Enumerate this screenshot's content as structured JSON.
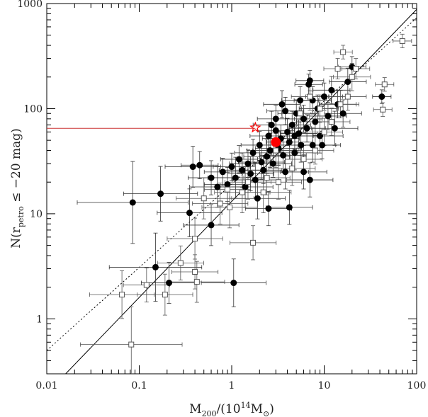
{
  "chart_data": {
    "type": "scatter",
    "title": "",
    "xlabel": "M200/(10^14 M⊙)",
    "ylabel": "N(r_petro ≤ −20 mag)",
    "x_scale": "log",
    "y_scale": "log",
    "xlim": [
      0.01,
      100
    ],
    "ylim": [
      0.3,
      1000
    ],
    "grid": false,
    "legend": "none",
    "x_ticks": [
      "0.01",
      "0.1",
      "1",
      "10",
      "100"
    ],
    "y_ticks": [
      "1",
      "10",
      "100",
      "1000"
    ],
    "xlabel_parts": {
      "pre": "M",
      "sub1": "200",
      "mid": "/(10",
      "sup": "14",
      "mid2": "M",
      "sub2": "⊙",
      "post": ")"
    },
    "ylabel_parts": {
      "pre": "N(r",
      "sub": "petro",
      "post": " ≤ −20  mag)"
    },
    "colors": {
      "filled": "#000000",
      "open": "#555555",
      "highlight": "#ff0000",
      "reference_line": "#cc3333"
    },
    "fit_lines": [
      {
        "style": "solid",
        "points": [
          [
            0.016,
            0.3
          ],
          [
            100,
            880
          ]
        ]
      },
      {
        "style": "dotted",
        "points": [
          [
            0.01,
            0.5
          ],
          [
            100,
            730
          ]
        ]
      }
    ],
    "highlight_point": {
      "x": 3.0,
      "y": 48
    },
    "star_point": {
      "x": 1.8,
      "y": 66
    },
    "reference_hline": {
      "y": 65,
      "x_start": 0.01,
      "x_end": 1.8
    },
    "series": [
      {
        "marker": "filled-circle",
        "points": [
          {
            "x": 0.085,
            "y": 12.8,
            "xe": 0.6
          },
          {
            "x": 0.17,
            "y": 15.5,
            "xe": 0.4
          },
          {
            "x": 0.15,
            "y": 3.1,
            "xe": 0.5
          },
          {
            "x": 0.21,
            "y": 2.2,
            "xe": 0.3
          },
          {
            "x": 0.38,
            "y": 28,
            "xe": 0.3
          },
          {
            "x": 0.35,
            "y": 10.2,
            "xe": 0.35
          },
          {
            "x": 0.6,
            "y": 7.8,
            "xe": 0.3
          },
          {
            "x": 1.05,
            "y": 2.2,
            "xe": 0.35
          },
          {
            "x": 2.5,
            "y": 11.2,
            "xe": 0.25
          },
          {
            "x": 4.2,
            "y": 11.5,
            "xe": 0.25
          },
          {
            "x": 0.45,
            "y": 29,
            "xe": 0.2
          },
          {
            "x": 0.6,
            "y": 22,
            "xe": 0.25
          },
          {
            "x": 0.7,
            "y": 18,
            "xe": 0.3
          },
          {
            "x": 0.8,
            "y": 25,
            "xe": 0.2
          },
          {
            "x": 0.9,
            "y": 19,
            "xe": 0.25
          },
          {
            "x": 1.0,
            "y": 28,
            "xe": 0.2
          },
          {
            "x": 1.1,
            "y": 22,
            "xe": 0.3
          },
          {
            "x": 1.2,
            "y": 33,
            "xe": 0.2
          },
          {
            "x": 1.3,
            "y": 26,
            "xe": 0.25
          },
          {
            "x": 1.4,
            "y": 18,
            "xe": 0.3
          },
          {
            "x": 1.5,
            "y": 30,
            "xe": 0.2
          },
          {
            "x": 1.6,
            "y": 24,
            "xe": 0.25
          },
          {
            "x": 1.7,
            "y": 38,
            "xe": 0.2
          },
          {
            "x": 1.8,
            "y": 21,
            "xe": 0.25
          },
          {
            "x": 2.0,
            "y": 45,
            "xe": 0.2
          },
          {
            "x": 2.1,
            "y": 31,
            "xe": 0.25
          },
          {
            "x": 2.2,
            "y": 26,
            "xe": 0.2
          },
          {
            "x": 2.4,
            "y": 35,
            "xe": 0.25
          },
          {
            "x": 2.5,
            "y": 55,
            "xe": 0.2
          },
          {
            "x": 2.6,
            "y": 40,
            "xe": 0.25
          },
          {
            "x": 2.8,
            "y": 30,
            "xe": 0.2
          },
          {
            "x": 3.0,
            "y": 62,
            "xe": 0.2
          },
          {
            "x": 3.2,
            "y": 42,
            "xe": 0.25
          },
          {
            "x": 3.4,
            "y": 52,
            "xe": 0.2
          },
          {
            "x": 3.6,
            "y": 36,
            "xe": 0.25
          },
          {
            "x": 3.8,
            "y": 95,
            "xe": 0.2
          },
          {
            "x": 4.0,
            "y": 60,
            "xe": 0.2
          },
          {
            "x": 4.2,
            "y": 48,
            "xe": 0.25
          },
          {
            "x": 4.5,
            "y": 70,
            "xe": 0.2
          },
          {
            "x": 4.8,
            "y": 38,
            "xe": 0.25
          },
          {
            "x": 5.0,
            "y": 90,
            "xe": 0.2
          },
          {
            "x": 5.3,
            "y": 58,
            "xe": 0.2
          },
          {
            "x": 5.6,
            "y": 45,
            "xe": 0.25
          },
          {
            "x": 6.0,
            "y": 80,
            "xe": 0.2
          },
          {
            "x": 6.5,
            "y": 65,
            "xe": 0.2
          },
          {
            "x": 7.0,
            "y": 185,
            "xe": 0.15
          },
          {
            "x": 7.5,
            "y": 120,
            "xe": 0.2
          },
          {
            "x": 8.0,
            "y": 75,
            "xe": 0.2
          },
          {
            "x": 8.5,
            "y": 100,
            "xe": 0.2
          },
          {
            "x": 9.0,
            "y": 55,
            "xe": 0.25
          },
          {
            "x": 10,
            "y": 130,
            "xe": 0.2
          },
          {
            "x": 11,
            "y": 85,
            "xe": 0.2
          },
          {
            "x": 12,
            "y": 150,
            "xe": 0.2
          },
          {
            "x": 13,
            "y": 65,
            "xe": 0.25
          },
          {
            "x": 14,
            "y": 110,
            "xe": 0.2
          },
          {
            "x": 16,
            "y": 90,
            "xe": 0.2
          },
          {
            "x": 18,
            "y": 180,
            "xe": 0.2
          },
          {
            "x": 20,
            "y": 250,
            "xe": 0.15
          },
          {
            "x": 42,
            "y": 130,
            "xe": 0.1
          },
          {
            "x": 3.0,
            "y": 80,
            "xe": 0.2
          },
          {
            "x": 2.7,
            "y": 70,
            "xe": 0.2
          },
          {
            "x": 3.5,
            "y": 110,
            "xe": 0.2
          },
          {
            "x": 4.8,
            "y": 55,
            "xe": 0.2
          },
          {
            "x": 5.5,
            "y": 120,
            "xe": 0.2
          },
          {
            "x": 6.8,
            "y": 170,
            "xe": 0.15
          },
          {
            "x": 7.5,
            "y": 45,
            "xe": 0.25
          },
          {
            "x": 9.5,
            "y": 45,
            "xe": 0.2
          },
          {
            "x": 6.0,
            "y": 25,
            "xe": 0.25
          },
          {
            "x": 7.0,
            "y": 21,
            "xe": 0.25
          },
          {
            "x": 3.8,
            "y": 25,
            "xe": 0.25
          },
          {
            "x": 1.9,
            "y": 14,
            "xe": 0.3
          }
        ]
      },
      {
        "marker": "open-square",
        "points": [
          {
            "x": 0.065,
            "y": 1.7,
            "xe": 0.35
          },
          {
            "x": 0.082,
            "y": 0.57,
            "xe": 0.55
          },
          {
            "x": 0.12,
            "y": 2.1,
            "xe": 0.25
          },
          {
            "x": 0.19,
            "y": 1.7,
            "xe": 0.3
          },
          {
            "x": 0.28,
            "y": 3.4,
            "xe": 0.25
          },
          {
            "x": 0.4,
            "y": 5.8,
            "xe": 0.3
          },
          {
            "x": 0.4,
            "y": 2.8,
            "xe": 0.25
          },
          {
            "x": 0.42,
            "y": 2.25,
            "xe": 0.3
          },
          {
            "x": 1.7,
            "y": 5.3,
            "xe": 0.25
          },
          {
            "x": 0.75,
            "y": 12.5,
            "xe": 0.3
          },
          {
            "x": 0.95,
            "y": 11.5,
            "xe": 0.3
          },
          {
            "x": 0.5,
            "y": 14,
            "xe": 0.3
          },
          {
            "x": 1.3,
            "y": 16,
            "xe": 0.3
          },
          {
            "x": 0.9,
            "y": 17,
            "xe": 0.25
          },
          {
            "x": 2.2,
            "y": 16,
            "xe": 0.3
          },
          {
            "x": 1.5,
            "y": 20,
            "xe": 0.25
          },
          {
            "x": 2.4,
            "y": 22,
            "xe": 0.25
          },
          {
            "x": 3.2,
            "y": 20,
            "xe": 0.25
          },
          {
            "x": 4.5,
            "y": 27,
            "xe": 0.25
          },
          {
            "x": 6.0,
            "y": 33,
            "xe": 0.2
          },
          {
            "x": 8.0,
            "y": 40,
            "xe": 0.2
          },
          {
            "x": 10,
            "y": 60,
            "xe": 0.2
          },
          {
            "x": 12,
            "y": 75,
            "xe": 0.2
          },
          {
            "x": 15,
            "y": 110,
            "xe": 0.2
          },
          {
            "x": 18,
            "y": 130,
            "xe": 0.2
          },
          {
            "x": 20,
            "y": 200,
            "xe": 0.2
          },
          {
            "x": 22,
            "y": 240,
            "xe": 0.15
          },
          {
            "x": 16,
            "y": 345,
            "xe": 0.1
          },
          {
            "x": 70,
            "y": 440,
            "xe": 0.1
          },
          {
            "x": 45,
            "y": 170,
            "xe": 0.1
          },
          {
            "x": 43,
            "y": 98,
            "xe": 0.1
          },
          {
            "x": 14,
            "y": 240,
            "xe": 0.15
          },
          {
            "x": 9,
            "y": 100,
            "xe": 0.2
          },
          {
            "x": 7,
            "y": 130,
            "xe": 0.2
          },
          {
            "x": 5.5,
            "y": 90,
            "xe": 0.2
          },
          {
            "x": 3.0,
            "y": 40,
            "xe": 0.25
          }
        ]
      }
    ]
  }
}
